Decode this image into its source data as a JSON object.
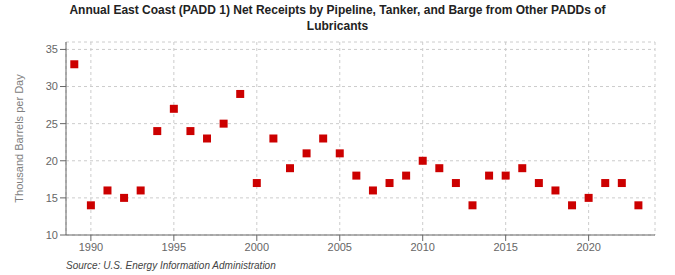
{
  "chart_data": {
    "type": "scatter",
    "title": "Annual East Coast (PADD 1) Net Receipts by Pipeline, Tanker, and Barge from Other PADDs of\nLubricants",
    "ylabel": "Thousand Barrels per Day",
    "annotations": [
      "Source: U.S. Energy Information Administration"
    ],
    "x": [
      1989,
      1990,
      1991,
      1992,
      1993,
      1994,
      1995,
      1996,
      1997,
      1998,
      1999,
      2000,
      2001,
      2002,
      2003,
      2004,
      2005,
      2006,
      2007,
      2008,
      2009,
      2010,
      2011,
      2012,
      2013,
      2014,
      2015,
      2016,
      2017,
      2018,
      2019,
      2020,
      2021,
      2022,
      2023
    ],
    "values": [
      33,
      14,
      16,
      15,
      16,
      24,
      27,
      24,
      23,
      25,
      29,
      17,
      23,
      19,
      21,
      23,
      21,
      18,
      16,
      17,
      18,
      20,
      19,
      17,
      14,
      18,
      18,
      19,
      17,
      16,
      14,
      15,
      17,
      17,
      14
    ],
    "color": "#cc0000",
    "marker": "square",
    "xlim": [
      1988.5,
      2024
    ],
    "xticks": [
      1990,
      1995,
      2000,
      2005,
      2010,
      2015,
      2020
    ],
    "ylim": [
      10,
      36
    ],
    "yticks": [
      10,
      15,
      20,
      25,
      30,
      35
    ],
    "grid": true
  }
}
